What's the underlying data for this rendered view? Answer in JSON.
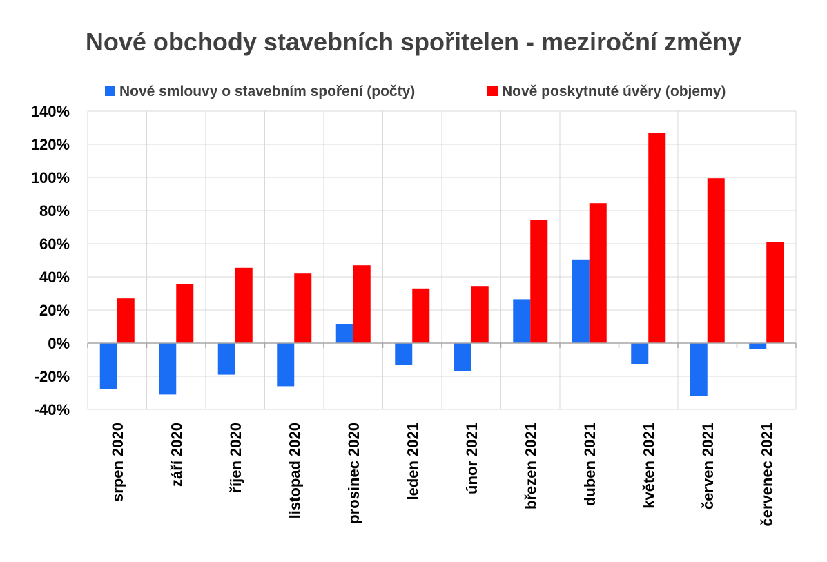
{
  "chart_data": {
    "type": "bar",
    "title": "Nové obchody stavebních spořitelen - meziroční změny",
    "categories": [
      "srpen 2020",
      "září 2020",
      "říjen 2020",
      "listopad 2020",
      "prosinec 2020",
      "leden 2021",
      "únor 2021",
      "březen 2021",
      "duben 2021",
      "květen 2021",
      "červen 2021",
      "červenec 2021"
    ],
    "series": [
      {
        "name": "Nové smlouvy o stavebním spoření (počty)",
        "color": "#1a6df5",
        "values": [
          -27.5,
          -31,
          -19,
          -26,
          11.5,
          -13,
          -17,
          26.5,
          50.5,
          -12.5,
          -32,
          -3.5
        ]
      },
      {
        "name": "Nově poskytnuté úvěry (objemy)",
        "color": "#ff0000",
        "values": [
          27,
          35.5,
          45.5,
          42,
          47,
          33,
          34.5,
          74.5,
          84.5,
          127,
          99.5,
          61
        ]
      }
    ],
    "ylim": [
      -40,
      140
    ],
    "yticks": [
      140,
      120,
      100,
      80,
      60,
      40,
      20,
      0,
      -20,
      -40
    ],
    "ytick_labels": [
      "140%",
      "120%",
      "100%",
      "80%",
      "60%",
      "40%",
      "20%",
      "0%",
      "-20%",
      "-40%"
    ],
    "xlabel": "",
    "ylabel": "",
    "grid": "horizontal and vertical",
    "legend_position": "top"
  }
}
